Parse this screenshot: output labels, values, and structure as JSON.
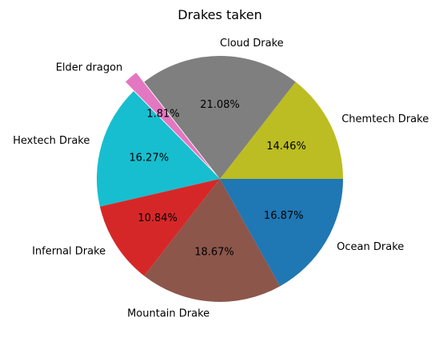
{
  "chart_data": {
    "type": "pie",
    "title": "Drakes taken",
    "slices": [
      {
        "label": "Chemtech Drake",
        "value": 14.46,
        "pct_text": "14.46%",
        "color": "#bcbd22",
        "explode": false
      },
      {
        "label": "Cloud Drake",
        "value": 21.08,
        "pct_text": "21.08%",
        "color": "#7f7f7f",
        "explode": false
      },
      {
        "label": "Elder dragon",
        "value": 1.81,
        "pct_text": "1.81%",
        "color": "#e377c2",
        "explode": true
      },
      {
        "label": "Hextech Drake",
        "value": 16.27,
        "pct_text": "16.27%",
        "color": "#17becf",
        "explode": false
      },
      {
        "label": "Infernal Drake",
        "value": 10.84,
        "pct_text": "10.84%",
        "color": "#d62728",
        "explode": false
      },
      {
        "label": "Mountain Drake",
        "value": 18.67,
        "pct_text": "18.67%",
        "color": "#8c564b",
        "explode": false
      },
      {
        "label": "Ocean Drake",
        "value": 16.87,
        "pct_text": "16.87%",
        "color": "#1f77b4",
        "explode": false
      }
    ],
    "start_angle_deg": 0,
    "direction": "counterclockwise",
    "edge_color": "#ffffff"
  }
}
